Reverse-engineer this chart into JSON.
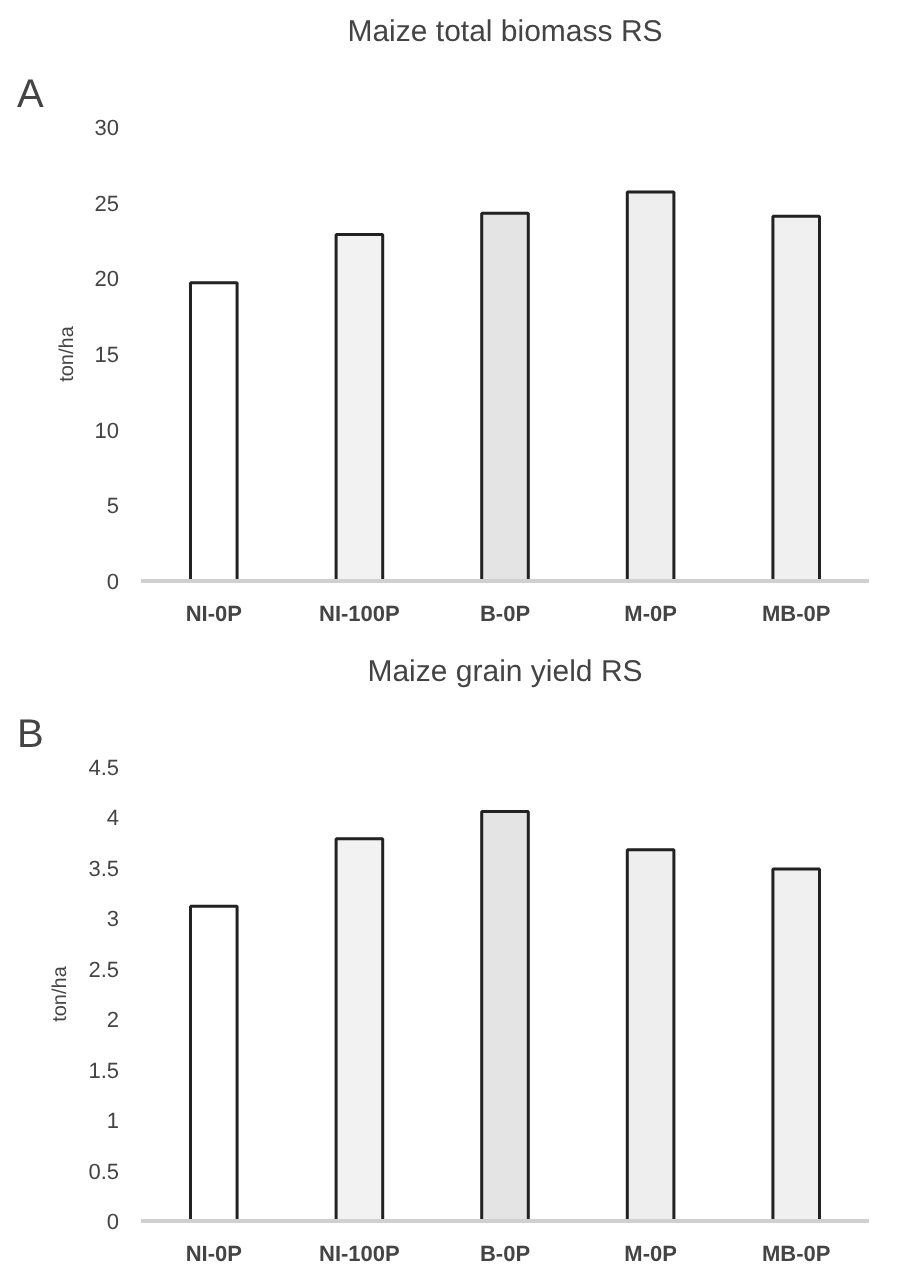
{
  "chart_data": [
    {
      "type": "bar",
      "title": "Maize total biomass RS",
      "ylabel": "ton/ha",
      "annotations": [
        "A"
      ],
      "categories": [
        "NI-0P",
        "NI-100P",
        "B-0P",
        "M-0P",
        "MB-0P"
      ],
      "values": [
        19.7,
        22.9,
        24.3,
        25.7,
        24.1
      ],
      "colors": [
        "#ffffff",
        "#f2f2f2",
        "#e4e4e4",
        "#eeeeee",
        "#f0f0f0"
      ],
      "ylim": [
        0,
        30
      ],
      "yticks": [
        0,
        5,
        10,
        15,
        20,
        25,
        30
      ],
      "grid": false
    },
    {
      "type": "bar",
      "title": "Maize grain yield RS",
      "ylabel": "ton/ha",
      "annotations": [
        "B"
      ],
      "categories": [
        "NI-0P",
        "NI-100P",
        "B-0P",
        "M-0P",
        "MB-0P"
      ],
      "values": [
        3.12,
        3.79,
        4.06,
        3.68,
        3.49
      ],
      "colors": [
        "#ffffff",
        "#f2f2f2",
        "#e4e4e4",
        "#eeeeee",
        "#f0f0f0"
      ],
      "ylim": [
        0,
        4.5
      ],
      "yticks": [
        0,
        0.5,
        1,
        1.5,
        2,
        2.5,
        3,
        3.5,
        4,
        4.5
      ],
      "grid": false
    }
  ]
}
